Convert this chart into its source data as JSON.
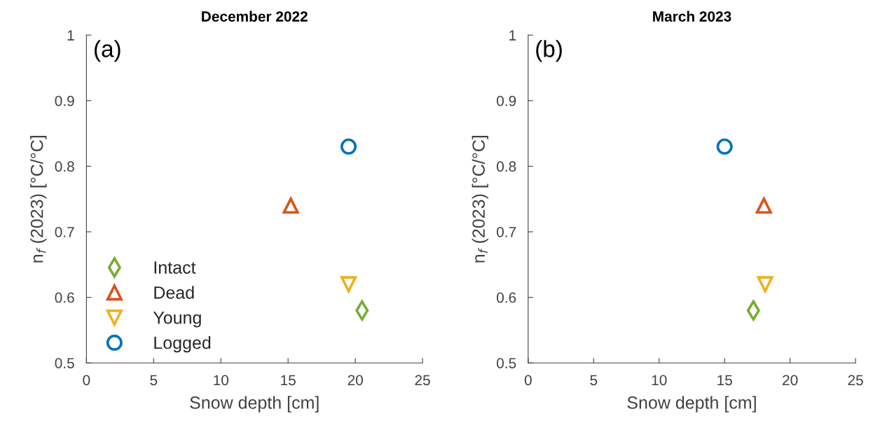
{
  "chart_data": [
    {
      "type": "scatter",
      "title": "December 2022",
      "xlabel": "Snow depth [cm]",
      "ylabel": "n$_{f}$ (2023) [°C/°C]",
      "annotations": [
        "(a)"
      ],
      "xlim": [
        0,
        25
      ],
      "xticks": [
        0,
        5,
        10,
        15,
        20,
        25
      ],
      "ylim": [
        0.5,
        1
      ],
      "yticks": [
        0.5,
        0.6,
        0.7,
        0.8,
        0.9,
        1
      ],
      "grid": false,
      "legend": "bottom left",
      "series": [
        {
          "name": "Intact",
          "color": "#77ac30",
          "marker": "diamond",
          "x": [
            20.5
          ],
          "values": [
            0.58
          ]
        },
        {
          "name": "Dead",
          "color": "#d95319",
          "marker": "triangle",
          "x": [
            15.2
          ],
          "values": [
            0.74
          ]
        },
        {
          "name": "Young",
          "color": "#edb120",
          "marker": "triangle_down",
          "x": [
            19.5
          ],
          "values": [
            0.62
          ]
        },
        {
          "name": "Logged",
          "color": "#0072bd",
          "marker": "circle",
          "x": [
            19.5
          ],
          "values": [
            0.83
          ]
        }
      ]
    },
    {
      "type": "scatter",
      "title": "March 2023",
      "xlabel": "Snow depth [cm]",
      "ylabel": "n$_{f}$ (2023) [°C/°C]",
      "annotations": [
        "(b)"
      ],
      "xlim": [
        0,
        25
      ],
      "xticks": [
        0,
        5,
        10,
        15,
        20,
        25
      ],
      "ylim": [
        0.5,
        1
      ],
      "yticks": [
        0.5,
        0.6,
        0.7,
        0.8,
        0.9,
        1
      ],
      "grid": false,
      "series": [
        {
          "color": "#77ac30",
          "marker": "diamond",
          "x": [
            17.2
          ],
          "values": [
            0.58
          ]
        },
        {
          "color": "#d95319",
          "marker": "triangle",
          "x": [
            18.0
          ],
          "values": [
            0.74
          ]
        },
        {
          "color": "#edb120",
          "marker": "triangle_down",
          "x": [
            18.1
          ],
          "values": [
            0.62
          ]
        },
        {
          "color": "#0072bd",
          "marker": "circle",
          "x": [
            15.0
          ],
          "values": [
            0.83
          ]
        }
      ]
    }
  ]
}
